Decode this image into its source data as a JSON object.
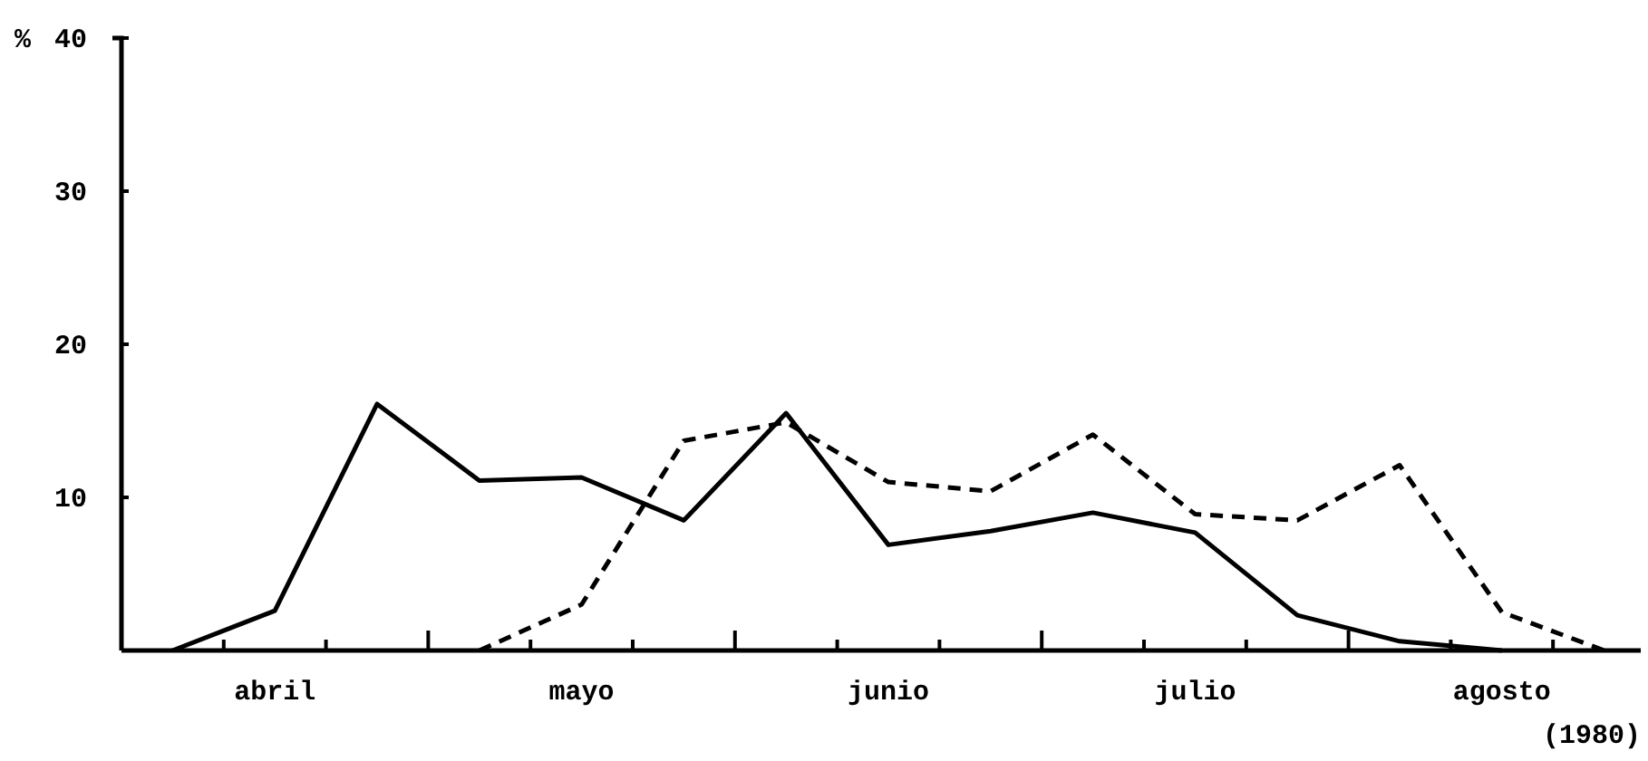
{
  "chart_data": {
    "type": "line",
    "ylabel": "%",
    "xlabel": "(1980)",
    "categories": [
      null,
      "abril",
      null,
      null,
      "mayo",
      null,
      null,
      "junio",
      null,
      null,
      "julio",
      null,
      null,
      "agosto",
      null
    ],
    "ylim": [
      0,
      40
    ],
    "yticks": [
      10,
      20,
      30,
      40
    ],
    "series": [
      {
        "color": "#000000",
        "line_style": "solid",
        "values": [
          0,
          2.6,
          16.1,
          11.1,
          11.3,
          8.5,
          15.5,
          6.9,
          7.8,
          9.0,
          7.7,
          2.3,
          0.6,
          0,
          null
        ]
      },
      {
        "color": "#000000",
        "line_style": "dashed",
        "values": [
          null,
          null,
          null,
          0,
          3.0,
          13.7,
          14.9,
          11.0,
          10.4,
          14.1,
          8.9,
          8.5,
          12.1,
          2.5,
          0
        ]
      }
    ]
  }
}
